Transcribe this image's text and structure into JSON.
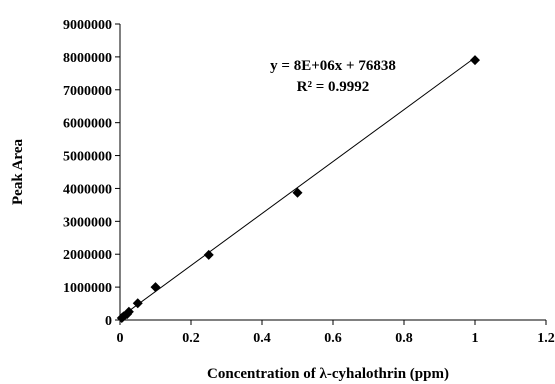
{
  "chart_data": {
    "type": "scatter",
    "title": "",
    "xlabel": "Concentration of λ-cyhalothrin (ppm)",
    "ylabel": "Peak Area",
    "xlim": [
      0,
      1.2
    ],
    "ylim": [
      0,
      9000000
    ],
    "x_ticks": [
      0,
      0.2,
      0.4,
      0.6,
      0.8,
      1,
      1.2
    ],
    "x_tick_labels": [
      "0",
      "0.2",
      "0.4",
      "0.6",
      "0.8",
      "1",
      "1.2"
    ],
    "y_ticks": [
      0,
      1000000,
      2000000,
      3000000,
      4000000,
      5000000,
      6000000,
      7000000,
      8000000,
      9000000
    ],
    "y_tick_labels": [
      "0",
      "1000000",
      "2000000",
      "3000000",
      "4000000",
      "5000000",
      "6000000",
      "7000000",
      "8000000",
      "9000000"
    ],
    "grid": false,
    "series": [
      {
        "marker": "diamond",
        "color": "#000000",
        "x": [
          0.005,
          0.01,
          0.02,
          0.025,
          0.05,
          0.1,
          0.25,
          0.5,
          1.0
        ],
        "y": [
          60000,
          110000,
          180000,
          250000,
          510000,
          1000000,
          1980000,
          3870000,
          7900000
        ]
      }
    ],
    "trendline": {
      "type": "linear",
      "slope": 7900000,
      "intercept": 76838,
      "x_range": [
        0,
        1.0
      ],
      "color": "#000000"
    },
    "annotations": {
      "equation": "y = 8E+06x + 76838",
      "r_squared": "R² = 0.9992"
    }
  }
}
